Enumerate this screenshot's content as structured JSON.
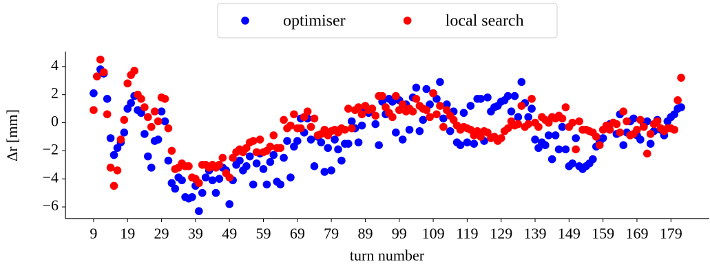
{
  "chart_data": {
    "type": "scatter",
    "x_label": "turn number",
    "y_label": "Δr [mm]",
    "legend": "upper center",
    "x": [
      9,
      10,
      11,
      12,
      13,
      14,
      15,
      16,
      17,
      18,
      19,
      20,
      21,
      22,
      23,
      24,
      25,
      26,
      27,
      28,
      29,
      30,
      31,
      32,
      33,
      34,
      35,
      36,
      37,
      38,
      39,
      40,
      41,
      42,
      43,
      44,
      45,
      46,
      47,
      48,
      49,
      50,
      51,
      52,
      53,
      54,
      55,
      56,
      57,
      58,
      59,
      60,
      61,
      62,
      63,
      64,
      65,
      66,
      67,
      68,
      69,
      70,
      71,
      72,
      73,
      74,
      75,
      76,
      77,
      78,
      79,
      80,
      81,
      82,
      83,
      84,
      85,
      86,
      87,
      88,
      89,
      90,
      91,
      92,
      93,
      94,
      95,
      96,
      97,
      98,
      99,
      100,
      101,
      102,
      103,
      104,
      105,
      106,
      107,
      108,
      109,
      110,
      111,
      112,
      113,
      114,
      115,
      116,
      117,
      118,
      119,
      120,
      121,
      122,
      123,
      124,
      125,
      126,
      127,
      128,
      129,
      130,
      131,
      132,
      133,
      134,
      135,
      136,
      137,
      138,
      139,
      140,
      141,
      142,
      143,
      144,
      145,
      146,
      147,
      148,
      149,
      150,
      151,
      152,
      153,
      154,
      155,
      156,
      157,
      158,
      159,
      160,
      161,
      162,
      163,
      164,
      165,
      166,
      167,
      168,
      169,
      170,
      171,
      172,
      173,
      174,
      175,
      176,
      177,
      178,
      179,
      180,
      181,
      182
    ],
    "series": [
      {
        "name": "optimiser",
        "color": "#0000ff",
        "values": [
          2.1,
          3.3,
          3.8,
          3.5,
          1.7,
          -1.1,
          -2.3,
          -1.8,
          -1.4,
          -0.7,
          1.0,
          1.4,
          1.9,
          0.9,
          0.7,
          -0.8,
          -2.4,
          -3.2,
          -1.3,
          -1.2,
          0.8,
          0.1,
          -2.7,
          -4.3,
          -4.7,
          -3.9,
          -4.1,
          -5.3,
          -5.4,
          -5.3,
          -4.5,
          -6.3,
          -5.0,
          -3.9,
          -3.4,
          -4.1,
          -5.0,
          -4.0,
          -3.2,
          -3.4,
          -5.8,
          -4.1,
          -3.0,
          -2.7,
          -3.4,
          -3.1,
          -2.4,
          -4.4,
          -2.9,
          -2.2,
          -3.3,
          -4.4,
          -2.8,
          -2.3,
          -4.2,
          -4.4,
          -2.5,
          -1.3,
          -3.9,
          -1.7,
          -1.3,
          0.3,
          -0.7,
          0.3,
          -1.2,
          -3.1,
          -1.0,
          -1.4,
          -3.5,
          -1.8,
          -3.4,
          -1.2,
          -1.9,
          -2.7,
          -1.5,
          -1.5,
          0.1,
          -0.4,
          -1.4,
          -0.2,
          0.9,
          0.7,
          1.0,
          -0.1,
          -1.6,
          1.5,
          0.6,
          1.7,
          1.5,
          -0.7,
          1.6,
          -1.2,
          1.3,
          -0.5,
          1.8,
          2.5,
          -0.6,
          0.2,
          2.4,
          1.3,
          2.1,
          1.7,
          2.9,
          0.3,
          1.3,
          -0.6,
          0.8,
          -1.4,
          -1.6,
          0.7,
          -1.4,
          1.2,
          -1.5,
          1.7,
          1.7,
          -1.3,
          1.8,
          0.8,
          1.1,
          1.2,
          1.5,
          1.6,
          1.9,
          0.8,
          1.9,
          0.4,
          2.9,
          1.4,
          0.4,
          1.0,
          -1.2,
          -1.8,
          -1.4,
          -1.6,
          -0.9,
          -2.6,
          -0.9,
          -1.9,
          -0.3,
          -1.9,
          -3.1,
          -2.9,
          -1.1,
          -3.1,
          -3.3,
          -3.1,
          -2.9,
          -2.6,
          -1.7,
          -1.4,
          -1.1,
          -0.4,
          -0.1,
          0,
          -0.8,
          0.6,
          -1.6,
          -0.7,
          0.1,
          0.3,
          -0.9,
          -1.2,
          -0.2,
          0.1,
          -1.5,
          -0.6,
          0.2,
          -0.5,
          -0.9,
          0.1,
          0.4,
          0.6,
          1.0,
          1.1
        ]
      },
      {
        "name": "local search",
        "color": "#ff0000",
        "values": [
          0.9,
          3.3,
          4.5,
          3.6,
          0.6,
          -3.2,
          -4.5,
          -3.4,
          -1.2,
          0.2,
          2.8,
          3.4,
          3.7,
          2.0,
          1.7,
          1.1,
          0.4,
          -0.3,
          0.8,
          0.1,
          1.8,
          1.7,
          -0.4,
          -2.0,
          -3.3,
          -3.2,
          -2.9,
          -3.1,
          -3.1,
          -3.9,
          -4.0,
          -4.3,
          -3.0,
          -3.0,
          -3.2,
          -3.0,
          -3.2,
          -3.0,
          -2.5,
          -3.6,
          -3.9,
          -2.5,
          -2.1,
          -1.9,
          -2.1,
          -1.8,
          -1.4,
          -1.3,
          -2.1,
          -1.2,
          -2.1,
          -2.0,
          -1.7,
          -0.9,
          -1.8,
          -1.8,
          0.2,
          -0.4,
          -0.2,
          0.6,
          -0.4,
          -0.4,
          0.4,
          0.8,
          -0.3,
          0.3,
          -0.9,
          -0.8,
          -0.5,
          -0.9,
          -0.6,
          -0.5,
          -0.7,
          -0.4,
          -0.5,
          1.0,
          -0.4,
          0.9,
          1.1,
          0.6,
          1.2,
          0.9,
          1.0,
          0.5,
          1.9,
          1.9,
          1.1,
          0.7,
          0.4,
          1.9,
          0.9,
          1.3,
          0.8,
          1.0,
          0.8,
          1.7,
          1.2,
          1.0,
          0.9,
          0.4,
          2.1,
          0.6,
          1.2,
          -0.3,
          0.9,
          0.5,
          0.2,
          -0.2,
          -0.5,
          -0.3,
          -0.4,
          -0.5,
          -0.9,
          -0.6,
          -1.0,
          -0.6,
          -0.7,
          -1.1,
          -1.0,
          -1.3,
          -1.1,
          -0.6,
          -0.4,
          0.1,
          -0.2,
          -0.1,
          1.2,
          -0.3,
          -0.1,
          1.7,
          0,
          -0.3,
          0.4,
          0.2,
          0,
          0.4,
          0.3,
          0.5,
          0.3,
          1.1,
          -0.3,
          0,
          -1.9,
          0.1,
          -0.5,
          -0.5,
          -0.6,
          -0.7,
          -1.0,
          -1.6,
          -0.5,
          -0.2,
          -0.5,
          0,
          -0.1,
          -0.7,
          0.8,
          0.1,
          -0.9,
          -0.8,
          -0.5,
          0.2,
          -0.3,
          -2.2,
          -0.8,
          -0.1,
          0.1,
          -0.4,
          -0.6,
          -0.4,
          -0.4,
          -0.5,
          1.6,
          3.2
        ]
      }
    ],
    "xlim": [
      0.7,
      190.3
    ],
    "ylim": [
      -6.83,
      5.07
    ],
    "xticks": [
      9,
      19,
      29,
      39,
      49,
      59,
      69,
      79,
      89,
      99,
      109,
      119,
      129,
      139,
      149,
      159,
      169,
      179
    ],
    "yticks": [
      {
        "value": -6,
        "label": "−6"
      },
      {
        "value": -4,
        "label": "−4"
      },
      {
        "value": -2,
        "label": "−2"
      },
      0,
      2,
      4
    ]
  }
}
